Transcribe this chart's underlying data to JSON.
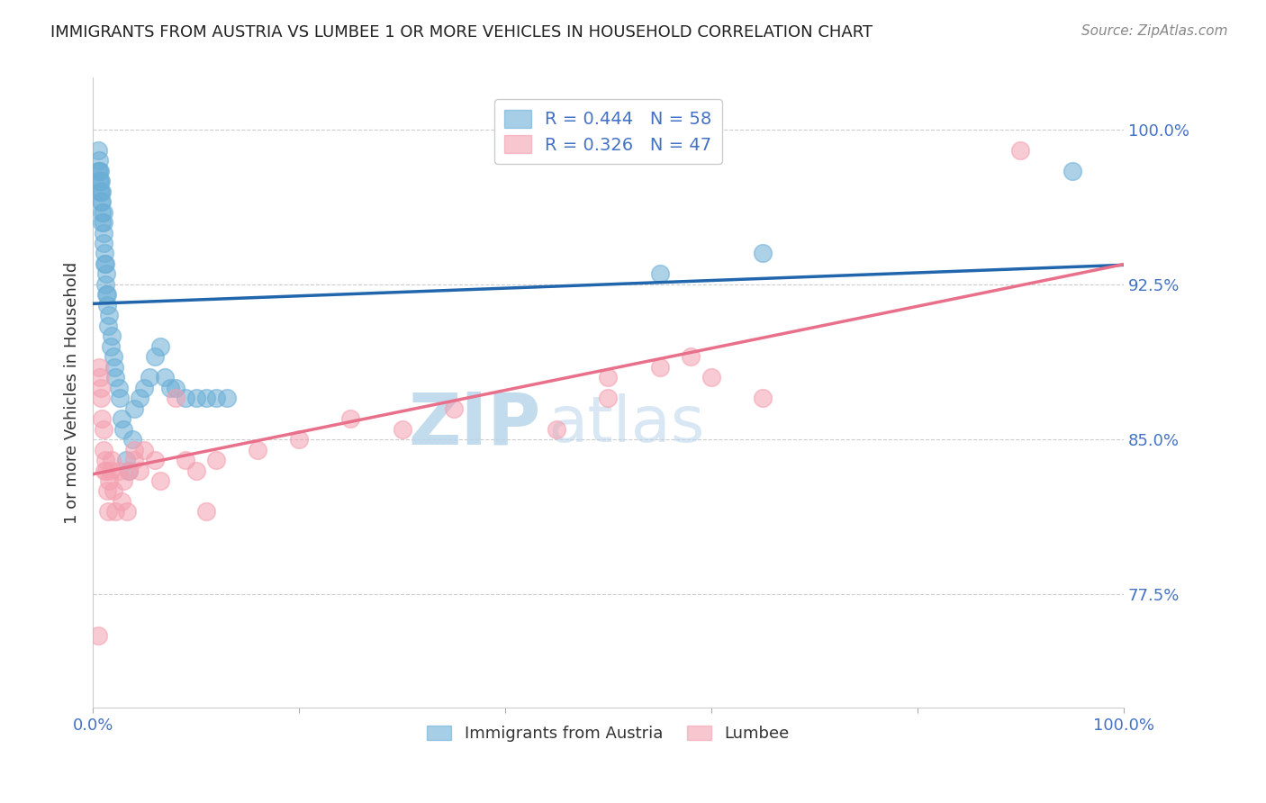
{
  "title": "IMMIGRANTS FROM AUSTRIA VS LUMBEE 1 OR MORE VEHICLES IN HOUSEHOLD CORRELATION CHART",
  "source": "Source: ZipAtlas.com",
  "ylabel": "1 or more Vehicles in Household",
  "yaxis_labels": [
    "100.0%",
    "92.5%",
    "85.0%",
    "77.5%"
  ],
  "yaxis_values": [
    1.0,
    0.925,
    0.85,
    0.775
  ],
  "xlim": [
    0.0,
    1.0
  ],
  "ylim": [
    0.72,
    1.025
  ],
  "legend_austria_R": "0.444",
  "legend_austria_N": "58",
  "legend_lumbee_R": "0.326",
  "legend_lumbee_N": "47",
  "legend_label_austria": "Immigrants from Austria",
  "legend_label_lumbee": "Lumbee",
  "color_austria": "#6baed6",
  "color_lumbee": "#f4a0b0",
  "color_austria_line": "#2166ac",
  "color_lumbee_line": "#e8708a",
  "color_axis_labels": "#4472c4",
  "color_title": "#222222",
  "background_color": "#ffffff",
  "grid_color": "#cccccc",
  "austria_x": [
    0.005,
    0.005,
    0.006,
    0.006,
    0.006,
    0.007,
    0.007,
    0.007,
    0.008,
    0.008,
    0.008,
    0.009,
    0.009,
    0.009,
    0.009,
    0.01,
    0.01,
    0.01,
    0.01,
    0.011,
    0.011,
    0.012,
    0.012,
    0.013,
    0.013,
    0.014,
    0.014,
    0.015,
    0.016,
    0.017,
    0.018,
    0.02,
    0.021,
    0.022,
    0.025,
    0.026,
    0.028,
    0.03,
    0.032,
    0.035,
    0.038,
    0.04,
    0.045,
    0.05,
    0.055,
    0.06,
    0.065,
    0.07,
    0.075,
    0.08,
    0.09,
    0.1,
    0.11,
    0.12,
    0.13,
    0.55,
    0.65,
    0.95
  ],
  "austria_y": [
    0.98,
    0.99,
    0.975,
    0.98,
    0.985,
    0.97,
    0.975,
    0.98,
    0.965,
    0.97,
    0.975,
    0.955,
    0.96,
    0.965,
    0.97,
    0.945,
    0.95,
    0.955,
    0.96,
    0.935,
    0.94,
    0.925,
    0.935,
    0.92,
    0.93,
    0.915,
    0.92,
    0.905,
    0.91,
    0.895,
    0.9,
    0.89,
    0.885,
    0.88,
    0.875,
    0.87,
    0.86,
    0.855,
    0.84,
    0.835,
    0.85,
    0.865,
    0.87,
    0.875,
    0.88,
    0.89,
    0.895,
    0.88,
    0.875,
    0.875,
    0.87,
    0.87,
    0.87,
    0.87,
    0.87,
    0.93,
    0.94,
    0.98
  ],
  "lumbee_x": [
    0.005,
    0.006,
    0.007,
    0.008,
    0.008,
    0.009,
    0.01,
    0.01,
    0.011,
    0.012,
    0.013,
    0.014,
    0.015,
    0.016,
    0.017,
    0.018,
    0.02,
    0.022,
    0.025,
    0.028,
    0.03,
    0.033,
    0.035,
    0.04,
    0.04,
    0.045,
    0.05,
    0.06,
    0.065,
    0.08,
    0.09,
    0.1,
    0.11,
    0.12,
    0.16,
    0.2,
    0.25,
    0.3,
    0.35,
    0.45,
    0.5,
    0.5,
    0.55,
    0.58,
    0.6,
    0.65,
    0.9
  ],
  "lumbee_y": [
    0.755,
    0.885,
    0.88,
    0.87,
    0.875,
    0.86,
    0.855,
    0.845,
    0.835,
    0.84,
    0.835,
    0.825,
    0.815,
    0.83,
    0.835,
    0.84,
    0.825,
    0.815,
    0.835,
    0.82,
    0.83,
    0.815,
    0.835,
    0.845,
    0.84,
    0.835,
    0.845,
    0.84,
    0.83,
    0.87,
    0.84,
    0.835,
    0.815,
    0.84,
    0.845,
    0.85,
    0.86,
    0.855,
    0.865,
    0.855,
    0.87,
    0.88,
    0.885,
    0.89,
    0.88,
    0.87,
    0.99
  ]
}
